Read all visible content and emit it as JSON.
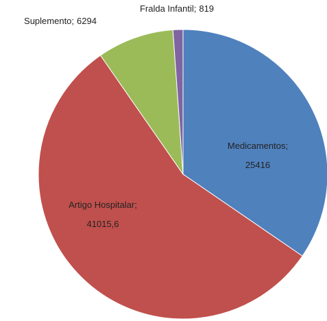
{
  "chart_data": {
    "type": "pie",
    "categories": [
      "Medicamentos",
      "Artigo Hospitalar",
      "Suplemento",
      "Fralda Infantil"
    ],
    "values": [
      25416,
      41015.6,
      6294,
      819
    ],
    "value_labels": [
      "25416",
      "41015,6",
      "6294",
      "819"
    ],
    "label_separator": ";",
    "colors": [
      "#4f81bd",
      "#c0504d",
      "#9bbb59",
      "#8064a2"
    ]
  }
}
